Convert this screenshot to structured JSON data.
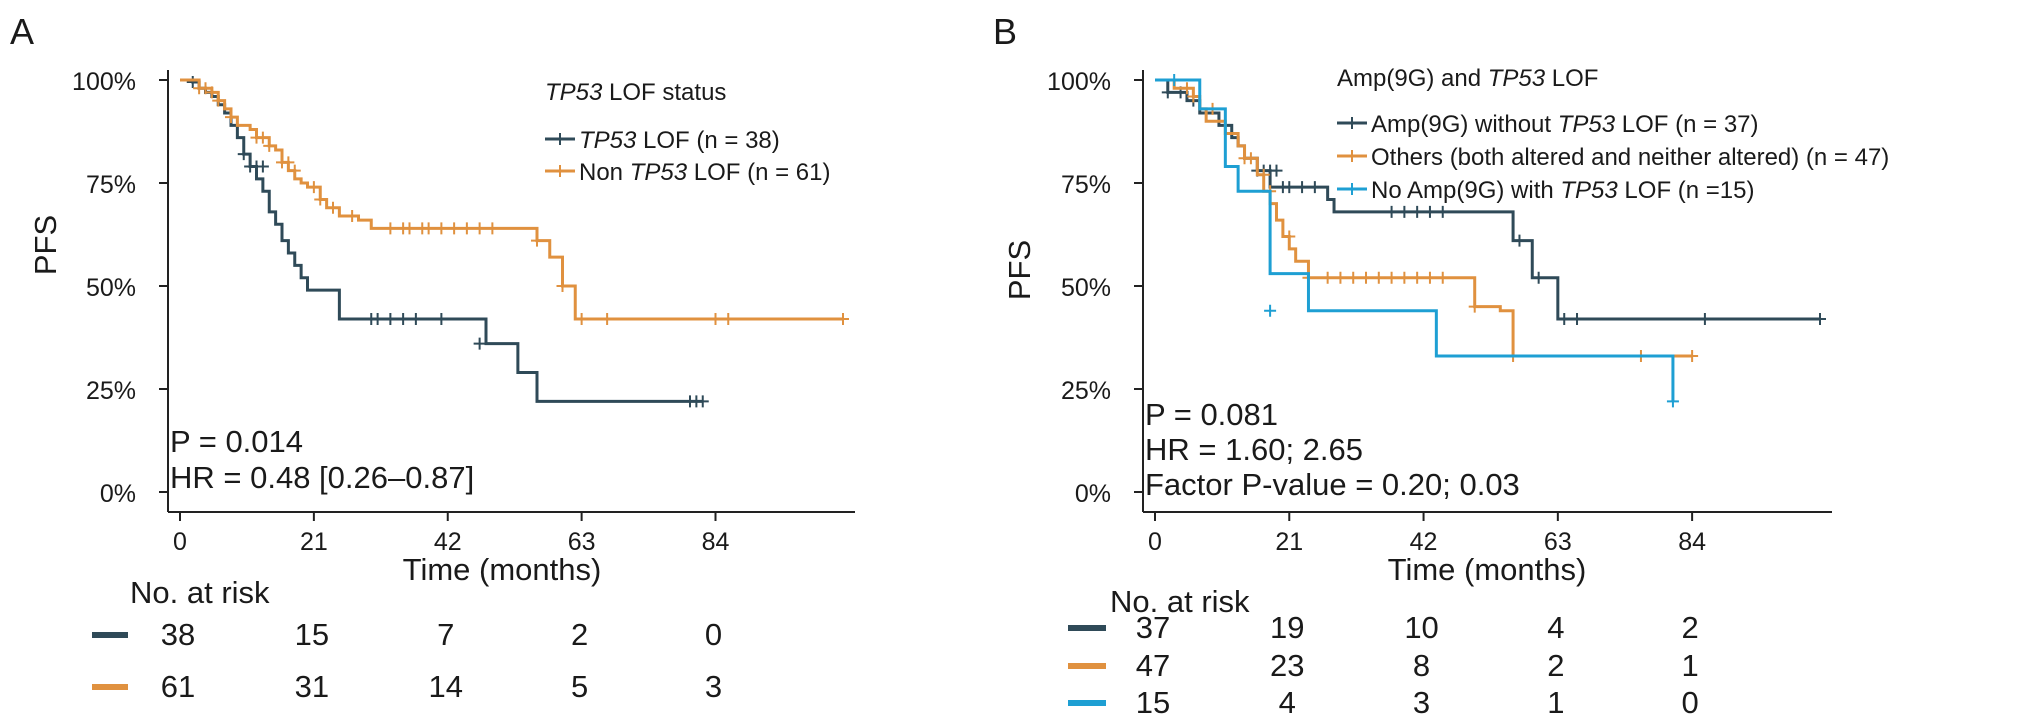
{
  "chart_data": [
    {
      "type": "line",
      "panel_label": "A",
      "xlabel": "Time (months)",
      "ylabel": "PFS",
      "xlim": [
        0,
        104
      ],
      "ylim": [
        0,
        1
      ],
      "xticks": [
        0,
        21,
        42,
        63,
        84
      ],
      "yticks": [
        0,
        0.25,
        0.5,
        0.75,
        1.0
      ],
      "ytick_labels": [
        "0%",
        "25%",
        "50%",
        "75%",
        "100%"
      ],
      "legend_title_italic": "TP53",
      "legend_title_rest": " LOF status",
      "legend_position": "top-right",
      "series": [
        {
          "name_italic": "TP53",
          "name_rest": " LOF (n = 38)",
          "color": "#2f4a58",
          "x": [
            0,
            2,
            3,
            4,
            5,
            6,
            7,
            8,
            9,
            10,
            11,
            12,
            13,
            14,
            15,
            16,
            17,
            18,
            19,
            20,
            25,
            48,
            53,
            56,
            82
          ],
          "y": [
            1.0,
            0.995,
            0.98,
            0.97,
            0.96,
            0.94,
            0.92,
            0.89,
            0.86,
            0.82,
            0.79,
            0.76,
            0.73,
            0.68,
            0.65,
            0.61,
            0.58,
            0.55,
            0.52,
            0.49,
            0.42,
            0.36,
            0.29,
            0.22,
            0.22
          ],
          "censor_x": [
            2,
            10,
            11,
            12,
            13,
            30,
            31,
            33,
            35,
            37,
            41,
            47,
            80,
            81,
            82
          ],
          "censor_y": [
            0.995,
            0.82,
            0.79,
            0.79,
            0.79,
            0.42,
            0.42,
            0.42,
            0.42,
            0.42,
            0.42,
            0.36,
            0.22,
            0.22,
            0.22
          ]
        },
        {
          "name_italic": "",
          "name_rest": "Non ",
          "name_italic2": "TP53",
          "name_rest2": " LOF (n = 61)",
          "color": "#e0913f",
          "x": [
            0,
            3,
            5,
            6,
            7,
            8,
            9,
            11,
            12,
            14,
            15,
            16,
            17,
            18,
            19,
            20,
            22,
            23,
            25,
            28,
            30,
            56,
            58,
            60,
            62,
            104
          ],
          "y": [
            1.0,
            0.98,
            0.97,
            0.95,
            0.93,
            0.91,
            0.89,
            0.88,
            0.86,
            0.84,
            0.83,
            0.8,
            0.78,
            0.76,
            0.75,
            0.74,
            0.71,
            0.69,
            0.67,
            0.66,
            0.64,
            0.61,
            0.57,
            0.5,
            0.42,
            0.42
          ],
          "censor_x": [
            3,
            4,
            5,
            6,
            8,
            12,
            13,
            14,
            16,
            17,
            18,
            21,
            22,
            24,
            27,
            33,
            35,
            36,
            38,
            39,
            41,
            43,
            45,
            47,
            49,
            56,
            60,
            63,
            67,
            84,
            86,
            104
          ],
          "censor_y": [
            0.98,
            0.98,
            0.97,
            0.95,
            0.91,
            0.86,
            0.86,
            0.84,
            0.8,
            0.8,
            0.78,
            0.74,
            0.71,
            0.69,
            0.67,
            0.64,
            0.64,
            0.64,
            0.64,
            0.64,
            0.64,
            0.64,
            0.64,
            0.64,
            0.64,
            0.61,
            0.5,
            0.42,
            0.42,
            0.42,
            0.42,
            0.42
          ]
        }
      ],
      "annotations": [
        "P = 0.014",
        "HR = 0.48 [0.26–0.87]"
      ],
      "risk_table": {
        "title": "No. at risk",
        "rows": [
          {
            "color": "#2f4a58",
            "values": [
              "38",
              "15",
              "7",
              "2",
              "0"
            ]
          },
          {
            "color": "#e0913f",
            "values": [
              "61",
              "31",
              "14",
              "5",
              "3"
            ]
          }
        ]
      }
    },
    {
      "type": "line",
      "panel_label": "B",
      "xlabel": "Time (months)",
      "ylabel": "PFS",
      "xlim": [
        0,
        104
      ],
      "ylim": [
        0,
        1
      ],
      "xticks": [
        0,
        21,
        42,
        63,
        84
      ],
      "yticks": [
        0,
        0.25,
        0.5,
        0.75,
        1.0
      ],
      "ytick_labels": [
        "0%",
        "25%",
        "50%",
        "75%",
        "100%"
      ],
      "legend_title_rest": "Amp(9G) and ",
      "legend_title_italic": "TP53",
      "legend_title_rest2": " LOF",
      "legend_position": "top-right",
      "series": [
        {
          "name_rest": "Amp(9G) without ",
          "name_italic": "TP53",
          "name_rest2": " LOF (n = 37)",
          "color": "#2f4a58",
          "x": [
            0,
            2,
            5,
            7,
            10,
            12,
            13,
            14,
            16,
            18,
            27,
            28,
            56,
            59,
            63,
            104
          ],
          "y": [
            1.0,
            0.97,
            0.95,
            0.92,
            0.89,
            0.86,
            0.84,
            0.81,
            0.78,
            0.74,
            0.71,
            0.68,
            0.61,
            0.52,
            0.42,
            0.42
          ],
          "censor_x": [
            2,
            4,
            6,
            16,
            17,
            18,
            19,
            20,
            21,
            23,
            25,
            37,
            39,
            41,
            43,
            45,
            57,
            60,
            64,
            66,
            86,
            104
          ],
          "censor_y": [
            0.97,
            0.97,
            0.95,
            0.78,
            0.78,
            0.78,
            0.78,
            0.74,
            0.74,
            0.74,
            0.74,
            0.68,
            0.68,
            0.68,
            0.68,
            0.68,
            0.61,
            0.52,
            0.42,
            0.42,
            0.42,
            0.42
          ]
        },
        {
          "name_rest": "Others (both altered and neither altered) (n = 47)",
          "name_italic": "",
          "name_rest2": "",
          "color": "#e0913f",
          "x": [
            0,
            3,
            6,
            7,
            8,
            11,
            13,
            14,
            16,
            17,
            18,
            19,
            20,
            21,
            22,
            24,
            49,
            50,
            54,
            56,
            84
          ],
          "y": [
            1.0,
            0.98,
            0.96,
            0.93,
            0.9,
            0.87,
            0.84,
            0.81,
            0.77,
            0.73,
            0.7,
            0.66,
            0.62,
            0.59,
            0.56,
            0.52,
            0.52,
            0.45,
            0.44,
            0.33,
            0.33
          ],
          "censor_x": [
            5,
            6,
            9,
            14,
            15,
            17,
            18,
            21,
            24,
            27,
            29,
            31,
            33,
            35,
            37,
            39,
            41,
            43,
            45,
            50,
            56,
            76,
            84
          ],
          "censor_y": [
            0.98,
            0.96,
            0.93,
            0.81,
            0.81,
            0.77,
            0.73,
            0.62,
            0.52,
            0.52,
            0.52,
            0.52,
            0.52,
            0.52,
            0.52,
            0.52,
            0.52,
            0.52,
            0.52,
            0.45,
            0.33,
            0.33,
            0.33
          ]
        },
        {
          "name_rest": "No Amp(9G) with ",
          "name_italic": "TP53",
          "name_rest2": " LOF (n =15)",
          "color": "#1e9fd3",
          "x": [
            0,
            7,
            11,
            13,
            18,
            24,
            44,
            81
          ],
          "y": [
            1.0,
            0.93,
            0.79,
            0.73,
            0.53,
            0.44,
            0.33,
            0.22
          ],
          "censor_x": [
            3,
            18,
            81
          ],
          "censor_y": [
            1.0,
            0.44,
            0.22
          ]
        }
      ],
      "annotations": [
        "P = 0.081",
        "HR = 1.60; 2.65",
        "Factor P-value = 0.20; 0.03"
      ],
      "risk_table": {
        "title": "No. at risk",
        "rows": [
          {
            "color": "#2f4a58",
            "values": [
              "37",
              "19",
              "10",
              "4",
              "2"
            ]
          },
          {
            "color": "#e0913f",
            "values": [
              "47",
              "23",
              "8",
              "2",
              "1"
            ]
          },
          {
            "color": "#1e9fd3",
            "values": [
              "15",
              "4",
              "3",
              "1",
              "0"
            ]
          }
        ]
      }
    }
  ]
}
